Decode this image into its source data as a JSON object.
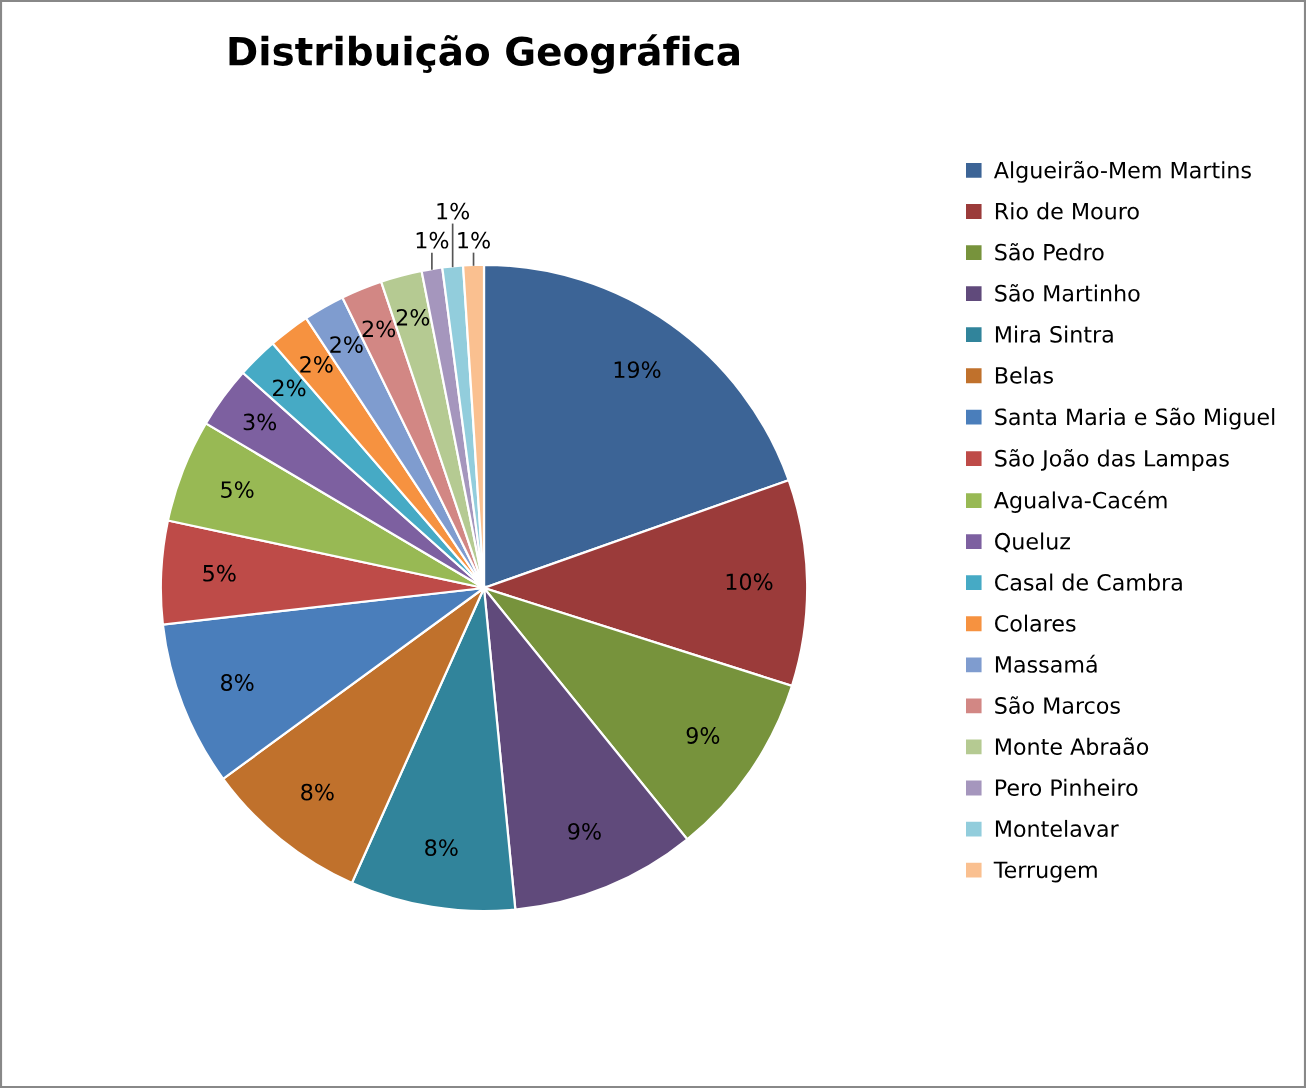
{
  "chart_data": {
    "type": "pie",
    "title": "Distribuição Geográfica",
    "categories": [
      "Algueirão-Mem Martins",
      "Rio de Mouro",
      "São Pedro",
      "São Martinho",
      "Mira Sintra",
      "Belas",
      "Santa Maria e São Miguel",
      "São João das Lampas",
      "Agualva-Cacém",
      "Queluz",
      "Casal de Cambra",
      "Colares",
      "Massamá",
      "São Marcos",
      "Monte Abraão",
      "Pero Pinheiro",
      "Montelavar",
      "Terrugem"
    ],
    "values": [
      19,
      10,
      9,
      9,
      8,
      8,
      8,
      5,
      5,
      3,
      2,
      2,
      2,
      2,
      2,
      1,
      1,
      1
    ],
    "colors": [
      "#3c6496",
      "#9b3b3a",
      "#77933c",
      "#604a7b",
      "#31849b",
      "#c0712c",
      "#4a7ebb",
      "#be4b48",
      "#98b954",
      "#7d60a0",
      "#46aac5",
      "#f69240",
      "#7f9ccf",
      "#d28784",
      "#b5ca92",
      "#a596bd",
      "#92cddc",
      "#fac090"
    ],
    "value_labels": [
      "19%",
      "10%",
      "9%",
      "9%",
      "8%",
      "8%",
      "8%",
      "5%",
      "5%",
      "3%",
      "2%",
      "2%",
      "2%",
      "2%",
      "2%",
      "1%",
      "1%",
      "1%"
    ],
    "legend": "right"
  }
}
